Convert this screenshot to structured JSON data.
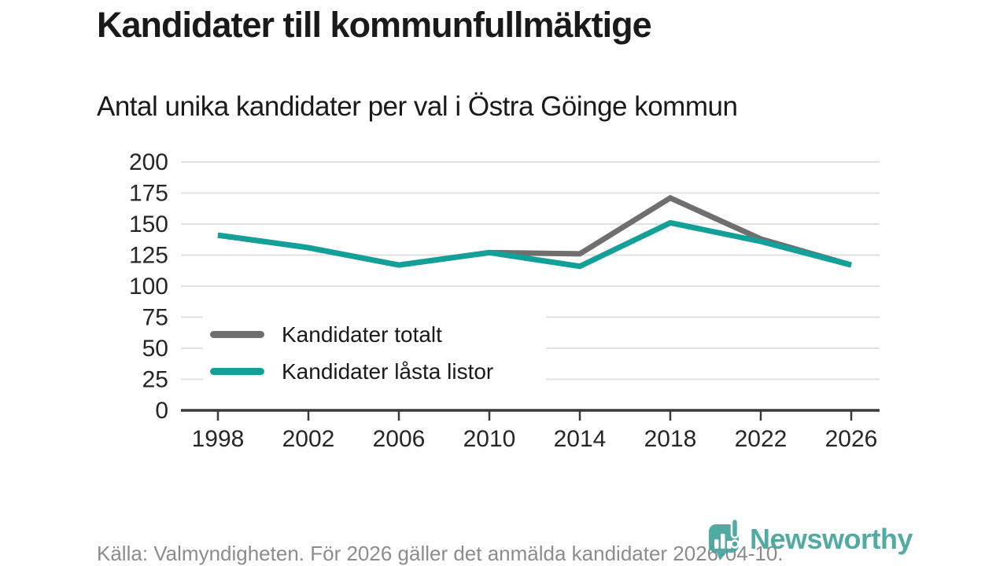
{
  "header": {
    "title": "Kandidater till kommunfullmäktige",
    "subtitle": "Antal unika kandidater per val i Östra Göinge kommun"
  },
  "chart_data": {
    "type": "line",
    "x": [
      1998,
      2002,
      2006,
      2010,
      2014,
      2018,
      2022,
      2026
    ],
    "series": [
      {
        "name": "Kandidater totalt",
        "color_key": "total",
        "values": [
          141,
          131,
          117,
          127,
          126,
          171,
          138,
          117
        ]
      },
      {
        "name": "Kandidater låsta listor",
        "color_key": "locked",
        "values": [
          141,
          131,
          117,
          127,
          116,
          151,
          136,
          117
        ]
      }
    ],
    "title": "Kandidater till kommunfullmäktige",
    "xlabel": "",
    "ylabel": "",
    "ylim": [
      0,
      200
    ],
    "yticks": [
      0,
      25,
      50,
      75,
      100,
      125,
      150,
      175,
      200
    ],
    "grid": true,
    "legend_position": "inside-bottom-left"
  },
  "colors": {
    "total": "#6f6f6f",
    "locked": "#12a098",
    "grid": "#e1e1e1",
    "axis": "#3a3a3a",
    "tick_text": "#262626",
    "text": "#1a1a1a",
    "muted": "#8c8c8c",
    "logo": "#45a59d"
  },
  "footer": {
    "source_note": "Källa: Valmyndigheten. För 2026 gäller det anmälda kandidater 2026-04-10.",
    "logo_text": "Newsworthy"
  }
}
